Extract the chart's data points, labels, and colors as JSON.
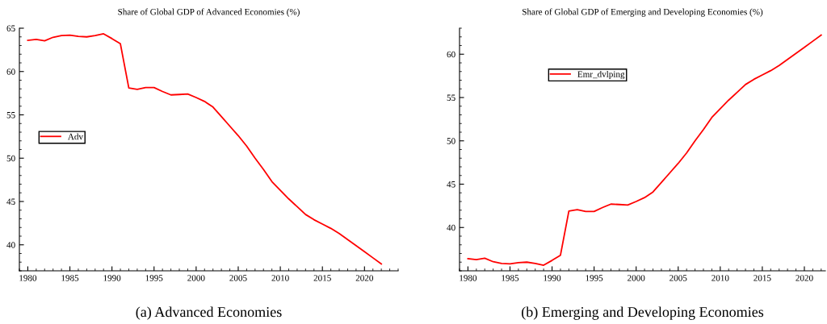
{
  "chart_data": [
    {
      "type": "line",
      "title": "Share of Global GDP of Advanced Economies (%)",
      "x": [
        1980,
        1981,
        1982,
        1983,
        1984,
        1985,
        1986,
        1987,
        1988,
        1989,
        1990,
        1991,
        1992,
        1993,
        1994,
        1995,
        1996,
        1997,
        1998,
        1999,
        2000,
        2001,
        2002,
        2003,
        2004,
        2005,
        2006,
        2007,
        2008,
        2009,
        2010,
        2011,
        2012,
        2013,
        2014,
        2015,
        2016,
        2017,
        2018,
        2019,
        2020,
        2021,
        2022
      ],
      "series": [
        {
          "name": "Adv",
          "color": "#ff0000",
          "values": [
            63.6,
            63.7,
            63.55,
            63.95,
            64.15,
            64.2,
            64.05,
            64.0,
            64.15,
            64.35,
            63.8,
            63.2,
            58.1,
            57.95,
            58.15,
            58.15,
            57.7,
            57.3,
            57.35,
            57.4,
            57.0,
            56.55,
            55.9,
            54.8,
            53.7,
            52.6,
            51.4,
            50.0,
            48.7,
            47.3,
            46.3,
            45.3,
            44.4,
            43.5,
            42.9,
            42.4,
            41.9,
            41.3,
            40.6,
            39.9,
            39.2,
            38.5,
            37.8
          ]
        }
      ],
      "xlim": [
        1979,
        2024
      ],
      "xticks": [
        1980,
        1985,
        1990,
        1995,
        2000,
        2005,
        2010,
        2015,
        2020
      ],
      "ylim": [
        37,
        65
      ],
      "yticks": [
        40,
        45,
        50,
        55,
        60,
        65
      ],
      "legend": "left",
      "grid": false,
      "annotations": [
        "(a) Advanced Economies"
      ]
    },
    {
      "type": "line",
      "title": "Share of Global GDP of Emerging and Developing Economies (%)",
      "x": [
        1980,
        1981,
        1982,
        1983,
        1984,
        1985,
        1986,
        1987,
        1988,
        1989,
        1990,
        1991,
        1992,
        1993,
        1994,
        1995,
        1996,
        1997,
        1998,
        1999,
        2000,
        2001,
        2002,
        2003,
        2004,
        2005,
        2006,
        2007,
        2008,
        2009,
        2010,
        2011,
        2012,
        2013,
        2014,
        2015,
        2016,
        2017,
        2018,
        2019,
        2020,
        2021,
        2022
      ],
      "series": [
        {
          "name": "Emr_dvlping",
          "color": "#ff0000",
          "values": [
            36.4,
            36.3,
            36.45,
            36.05,
            35.85,
            35.8,
            35.95,
            36.0,
            35.85,
            35.65,
            36.2,
            36.8,
            41.9,
            42.05,
            41.85,
            41.85,
            42.3,
            42.7,
            42.65,
            42.6,
            43.0,
            43.45,
            44.1,
            45.2,
            46.3,
            47.4,
            48.6,
            50.0,
            51.3,
            52.7,
            53.7,
            54.7,
            55.6,
            56.5,
            57.1,
            57.6,
            58.1,
            58.7,
            59.4,
            60.1,
            60.8,
            61.5,
            62.2
          ]
        }
      ],
      "xlim": [
        1979,
        2022.5
      ],
      "xticks": [
        1980,
        1985,
        1990,
        1995,
        2000,
        2005,
        2010,
        2015,
        2020
      ],
      "ylim": [
        35,
        63
      ],
      "yticks": [
        40,
        45,
        50,
        55,
        60
      ],
      "legend": "top",
      "grid": false,
      "annotations": [
        "(b) Emerging and Developing Economies"
      ]
    }
  ]
}
